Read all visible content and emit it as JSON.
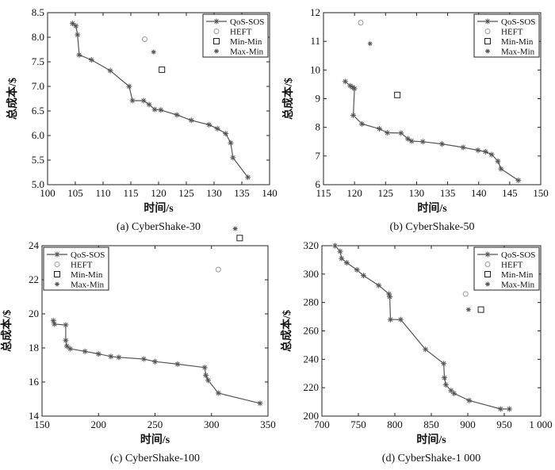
{
  "figure": {
    "background": "#ffffff",
    "line_color": "#555555",
    "marker_color": "#555555",
    "heft_color": "#999999",
    "axis_color": "#222222"
  },
  "chart_data": [
    {
      "type": "line",
      "title": "(a) CyberShake-30",
      "xlabel": "时间/s",
      "ylabel": "总成本/$",
      "xlim": [
        100,
        140
      ],
      "ylim": [
        5.0,
        8.5
      ],
      "xticks": [
        100,
        105,
        110,
        115,
        120,
        125,
        130,
        135,
        140
      ],
      "yticks": [
        5.0,
        5.5,
        6.0,
        6.5,
        7.0,
        7.5,
        8.0,
        8.5
      ],
      "xtick_labels": [
        "100",
        "105",
        "110",
        "115",
        "120",
        "125",
        "130",
        "135",
        "140"
      ],
      "ytick_labels": [
        "5.0",
        "5.5",
        "6.0",
        "6.5",
        "7.0",
        "7.5",
        "8.0",
        "8.5"
      ],
      "legend": {
        "position": "top-right",
        "entries": [
          "QoS-SOS",
          "HEFT",
          "Min-Min",
          "Max-Min"
        ]
      },
      "series": [
        {
          "name": "QoS-SOS",
          "marker": "star-line",
          "x": [
            104.5,
            105.1,
            105.4,
            105.7,
            107.9,
            111.3,
            114.7,
            115.3,
            117.3,
            118.3,
            119.3,
            120.4,
            123.3,
            125.9,
            129.1,
            130.6,
            132.1,
            133.0,
            133.4,
            136.1
          ],
          "y": [
            8.28,
            8.23,
            8.05,
            7.64,
            7.54,
            7.32,
            7.0,
            6.71,
            6.71,
            6.63,
            6.53,
            6.52,
            6.42,
            6.31,
            6.22,
            6.14,
            6.04,
            5.85,
            5.55,
            5.15
          ]
        },
        {
          "name": "HEFT",
          "marker": "circle",
          "x": [
            117.5
          ],
          "y": [
            7.96
          ]
        },
        {
          "name": "Min-Min",
          "marker": "square",
          "x": [
            120.6
          ],
          "y": [
            7.34
          ]
        },
        {
          "name": "Max-Min",
          "marker": "star",
          "x": [
            119.1
          ],
          "y": [
            7.7
          ]
        }
      ]
    },
    {
      "type": "line",
      "title": "(b) CyberShake-50",
      "xlabel": "时间/s",
      "ylabel": "总成本/$",
      "xlim": [
        115,
        150
      ],
      "ylim": [
        6,
        12
      ],
      "xticks": [
        115,
        120,
        125,
        130,
        135,
        140,
        145,
        150
      ],
      "yticks": [
        6,
        7,
        8,
        9,
        10,
        11,
        12
      ],
      "xtick_labels": [
        "115",
        "120",
        "125",
        "130",
        "135",
        "140",
        "145",
        "150"
      ],
      "ytick_labels": [
        "6",
        "7",
        "8",
        "9",
        "10",
        "11",
        "12"
      ],
      "legend": {
        "position": "top-right",
        "entries": [
          "QoS-SOS",
          "HEFT",
          "Min-Min",
          "Max-Min"
        ]
      },
      "series": [
        {
          "name": "QoS-SOS",
          "marker": "star-line",
          "x": [
            118.5,
            119.3,
            119.7,
            120.0,
            119.8,
            121.2,
            124.0,
            125.3,
            127.5,
            128.6,
            129.2,
            131.0,
            134.1,
            137.5,
            139.9,
            141.1,
            142.1,
            143.1,
            143.6,
            146.4
          ],
          "y": [
            9.6,
            9.45,
            9.4,
            9.35,
            8.42,
            8.12,
            7.95,
            7.81,
            7.8,
            7.6,
            7.52,
            7.5,
            7.42,
            7.3,
            7.2,
            7.15,
            7.05,
            6.82,
            6.55,
            6.15
          ]
        },
        {
          "name": "HEFT",
          "marker": "circle",
          "x": [
            121.0
          ],
          "y": [
            11.65
          ]
        },
        {
          "name": "Min-Min",
          "marker": "square",
          "x": [
            126.9
          ],
          "y": [
            9.13
          ]
        },
        {
          "name": "Max-Min",
          "marker": "star",
          "x": [
            122.5
          ],
          "y": [
            10.92
          ]
        }
      ]
    },
    {
      "type": "line",
      "title": "(c) CyberShake-100",
      "xlabel": "时间/s",
      "ylabel": "总成本/$",
      "xlim": [
        150,
        350
      ],
      "ylim": [
        14,
        24
      ],
      "xticks": [
        150,
        200,
        250,
        300,
        350
      ],
      "yticks": [
        14,
        16,
        18,
        20,
        22,
        24
      ],
      "xtick_labels": [
        "150",
        "200",
        "250",
        "300",
        "350"
      ],
      "ytick_labels": [
        "14",
        "16",
        "18",
        "20",
        "22",
        "24"
      ],
      "legend": {
        "position": "top-left",
        "entries": [
          "QoS-SOS",
          "HEFT",
          "Min-Min",
          "Max-Min"
        ]
      },
      "series": [
        {
          "name": "QoS-SOS",
          "marker": "star-line",
          "x": [
            160,
            161,
            171,
            171,
            172,
            175,
            188,
            200,
            211,
            218,
            240,
            250,
            270,
            294,
            295,
            297,
            306,
            343
          ],
          "y": [
            19.6,
            19.4,
            19.35,
            18.45,
            18.1,
            17.95,
            17.8,
            17.65,
            17.5,
            17.45,
            17.35,
            17.2,
            17.05,
            16.85,
            16.4,
            16.1,
            15.35,
            14.75
          ]
        },
        {
          "name": "HEFT",
          "marker": "circle",
          "x": [
            306
          ],
          "y": [
            22.6
          ]
        },
        {
          "name": "Min-Min",
          "marker": "square",
          "x": [
            325
          ],
          "y": [
            24.45
          ]
        },
        {
          "name": "Max-Min",
          "marker": "star",
          "x": [
            321
          ],
          "y": [
            25.0
          ]
        }
      ]
    },
    {
      "type": "line",
      "title": "(d) CyberShake-1 000",
      "xlabel": "时间/s",
      "ylabel": "总成本/$",
      "xlim": [
        700,
        1000
      ],
      "ylim": [
        200,
        320
      ],
      "xticks": [
        700,
        750,
        800,
        850,
        900,
        950,
        1000
      ],
      "yticks": [
        200,
        220,
        240,
        260,
        280,
        300,
        320
      ],
      "xtick_labels": [
        "700",
        "750",
        "800",
        "850",
        "900",
        "950",
        "1 000"
      ],
      "ytick_labels": [
        "200",
        "220",
        "240",
        "260",
        "280",
        "300",
        "320"
      ],
      "legend": {
        "position": "top-right",
        "entries": [
          "QoS-SOS",
          "HEFT",
          "Min-Min",
          "Max-Min"
        ]
      },
      "series": [
        {
          "name": "QoS-SOS",
          "marker": "star-line",
          "x": [
            718,
            725,
            727,
            734,
            748,
            757,
            778,
            792,
            793,
            794,
            808,
            842,
            867,
            868,
            870,
            877,
            881,
            902,
            945,
            957
          ],
          "y": [
            320,
            316,
            311,
            308,
            303,
            299,
            292,
            286,
            284,
            268,
            268,
            247,
            237,
            227,
            222,
            218,
            216,
            211,
            205,
            205
          ]
        },
        {
          "name": "HEFT",
          "marker": "circle",
          "x": [
            897
          ],
          "y": [
            286
          ]
        },
        {
          "name": "Min-Min",
          "marker": "square",
          "x": [
            918
          ],
          "y": [
            275
          ]
        },
        {
          "name": "Max-Min",
          "marker": "star",
          "x": [
            901
          ],
          "y": [
            275
          ]
        }
      ]
    }
  ]
}
